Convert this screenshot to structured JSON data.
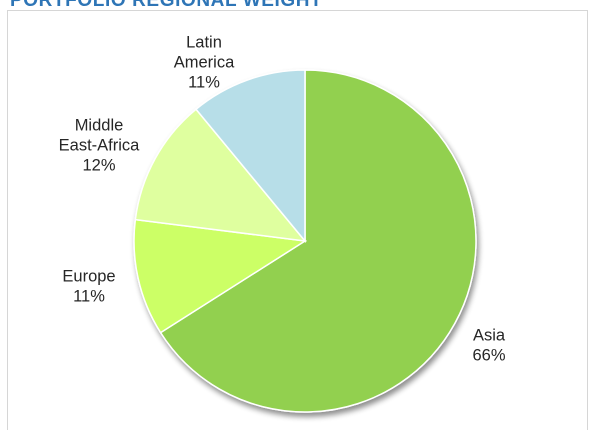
{
  "chart_data": {
    "type": "pie",
    "title": "PORTFOLIO REGIONAL WEIGHT",
    "slices": [
      {
        "category": [
          "Asia"
        ],
        "value": 66,
        "label": "66%",
        "color": "#92d050"
      },
      {
        "category": [
          "Europe"
        ],
        "value": 11,
        "label": "11%",
        "color": "#ccff66"
      },
      {
        "category": [
          "Middle",
          "East-Africa"
        ],
        "value": 12,
        "label": "12%",
        "color": "#dfff9f"
      },
      {
        "category": [
          "Latin",
          "America"
        ],
        "value": 11,
        "label": "11%",
        "color": "#b7dee8"
      }
    ],
    "start_angle": "12 o'clock",
    "direction": "clockwise",
    "legend": "none",
    "label_position": "outside"
  },
  "colors": {
    "title": "#2e75b6",
    "frame_border": "#d6d6d6",
    "slice_border": "#ffffff"
  }
}
